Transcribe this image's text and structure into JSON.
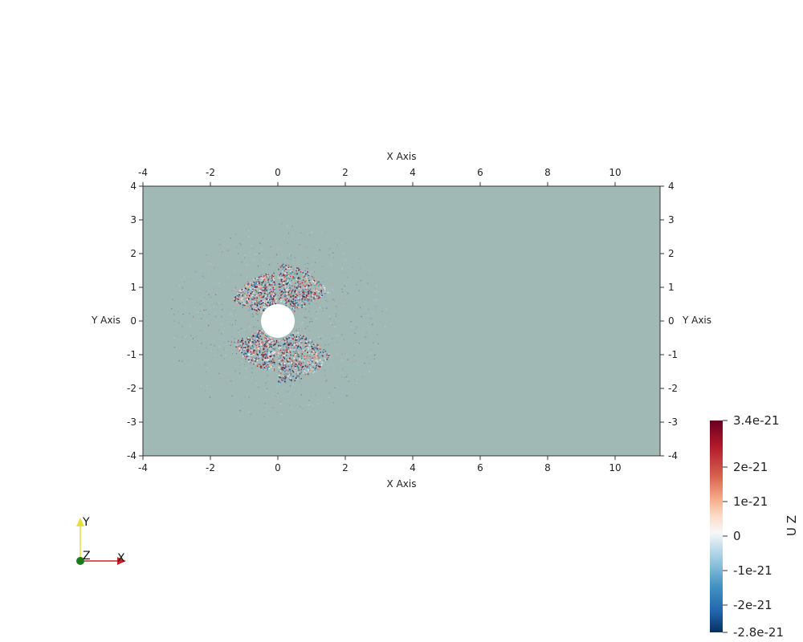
{
  "plot": {
    "field_color": "#a0b9b5",
    "x_axis_title_top": "X Axis",
    "x_axis_title_bottom": "X Axis",
    "y_axis_title_left": "Y Axis",
    "y_axis_title_right": "Y Axis",
    "x_ticks": [
      "-4",
      "-2",
      "0",
      "2",
      "4",
      "6",
      "8",
      "10"
    ],
    "y_ticks": [
      "4",
      "3",
      "2",
      "1",
      "0",
      "-1",
      "-2",
      "-3",
      "-4"
    ],
    "y_ticks_right": [
      "4",
      "3",
      "2",
      "1",
      "0",
      "-1",
      "-2",
      "-3",
      "-4"
    ]
  },
  "colorbar": {
    "title": "U Z",
    "labels": [
      "3.4e-21",
      "2e-21",
      "1e-21",
      "0",
      "-1e-21",
      "-2e-21",
      "-2.8e-21"
    ],
    "colors": [
      "#67001f",
      "#b2182b",
      "#d6604d",
      "#f4a582",
      "#fddbc7",
      "#f7f7f7",
      "#d1e5f0",
      "#92c5de",
      "#4393c3",
      "#2166ac",
      "#053061"
    ]
  },
  "orientation_axes": {
    "x_label": "X",
    "y_label": "Y",
    "z_label": "Z",
    "x_color": "#cc2222",
    "y_color": "#e6e03a",
    "z_color": "#1a7a1a"
  }
}
